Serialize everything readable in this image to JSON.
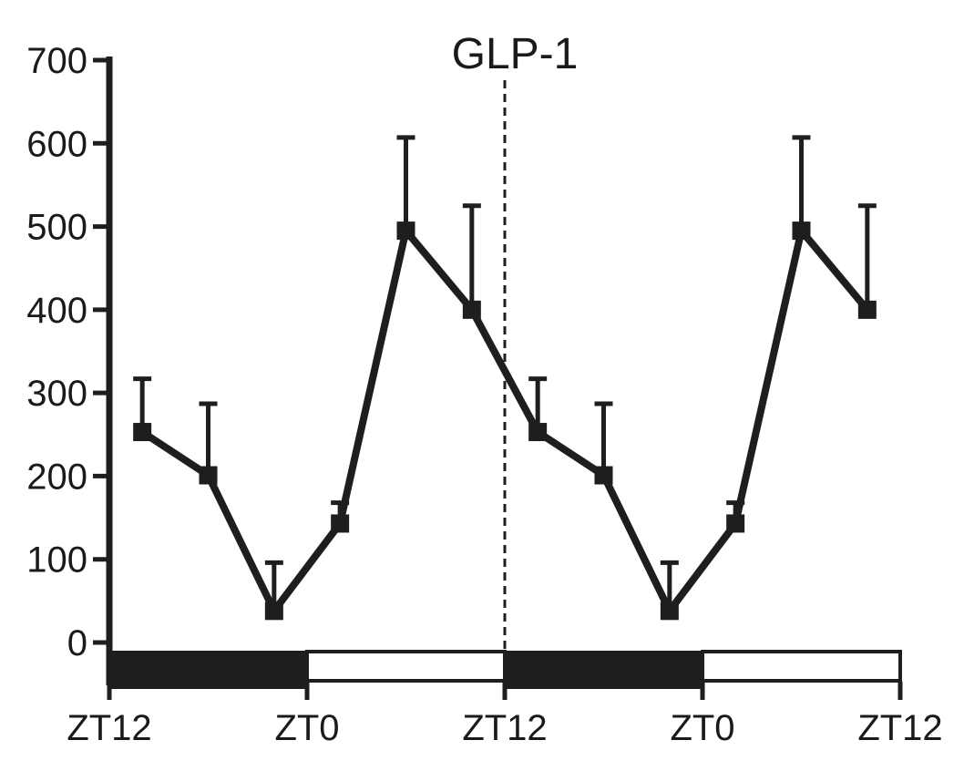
{
  "chart_data": {
    "type": "line",
    "title": "GLP-1",
    "xlabel": "",
    "ylabel": "",
    "ylim": [
      0,
      700
    ],
    "yticks": [
      0,
      100,
      200,
      300,
      400,
      500,
      600,
      700
    ],
    "ytick_labels": [
      "0",
      "100",
      "200",
      "300",
      "400",
      "500",
      "600",
      "700"
    ],
    "xlim_hours": [
      0,
      48
    ],
    "xticks_hours": [
      0,
      12,
      24,
      36,
      48
    ],
    "xtick_labels": [
      "ZT12",
      "ZT0",
      "ZT12",
      "ZT0",
      "ZT12"
    ],
    "series": [
      {
        "name": "GLP-1",
        "x_hours": [
          2,
          6,
          10,
          14,
          18,
          22,
          26,
          30,
          34,
          38,
          42,
          46
        ],
        "zt": [
          14,
          18,
          22,
          2,
          6,
          10,
          14,
          18,
          22,
          2,
          6,
          10
        ],
        "values": [
          253,
          201,
          38,
          143,
          495,
          400,
          253,
          201,
          38,
          143,
          495,
          400
        ],
        "error_upper": [
          317,
          287,
          96,
          168,
          607,
          525,
          317,
          287,
          96,
          168,
          607,
          525
        ],
        "color": "#222222"
      }
    ],
    "divider_hours": 24,
    "light_dark_bar": [
      {
        "from": 0,
        "to": 12,
        "phase": "dark"
      },
      {
        "from": 12,
        "to": 24,
        "phase": "light"
      },
      {
        "from": 24,
        "to": 36,
        "phase": "dark"
      },
      {
        "from": 36,
        "to": 48,
        "phase": "light"
      }
    ],
    "grid": false,
    "legend": "none"
  }
}
